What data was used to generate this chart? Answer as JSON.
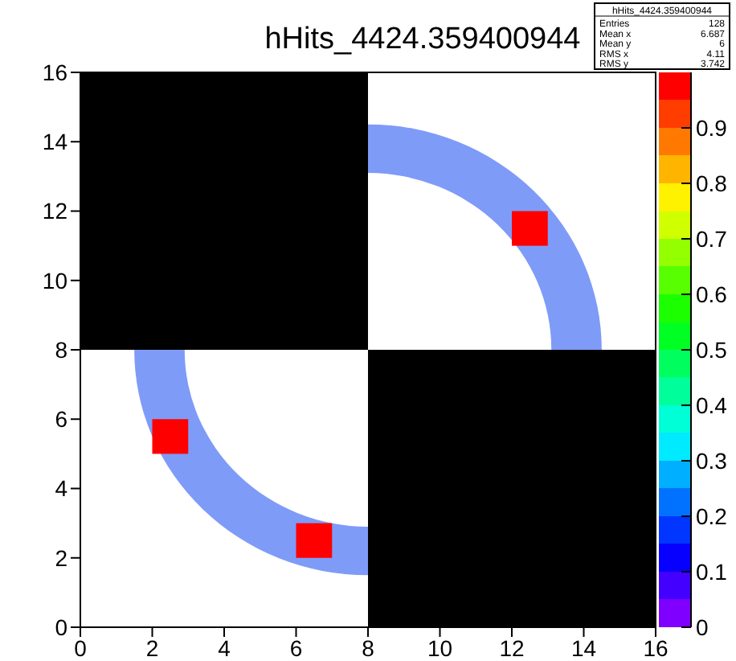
{
  "chart_data": {
    "type": "scatter",
    "title": "hHits_4424.359400944",
    "annotations": [
      "hHits_4424.359400944",
      "Entries 128",
      "Mean x 6.687",
      "Mean y 6",
      "RMS x 4.11",
      "RMS y 3.742"
    ],
    "xlim": [
      0,
      16
    ],
    "xticks": [
      0,
      2,
      4,
      6,
      8,
      10,
      12,
      14,
      16
    ],
    "ylim": [
      0,
      16
    ],
    "yticks": [
      0,
      2,
      4,
      6,
      8,
      10,
      12,
      14,
      16
    ],
    "marker": "square",
    "x": [
      2.5,
      6.5,
      12.5
    ],
    "values": [
      5.5,
      2.5,
      11.5
    ],
    "cvalues": [
      1,
      1,
      1
    ],
    "clim": [
      0,
      1
    ],
    "cticks": [
      0,
      0.1,
      0.2,
      0.3,
      0.4,
      0.5,
      0.6,
      0.7,
      0.8,
      0.9
    ]
  }
}
